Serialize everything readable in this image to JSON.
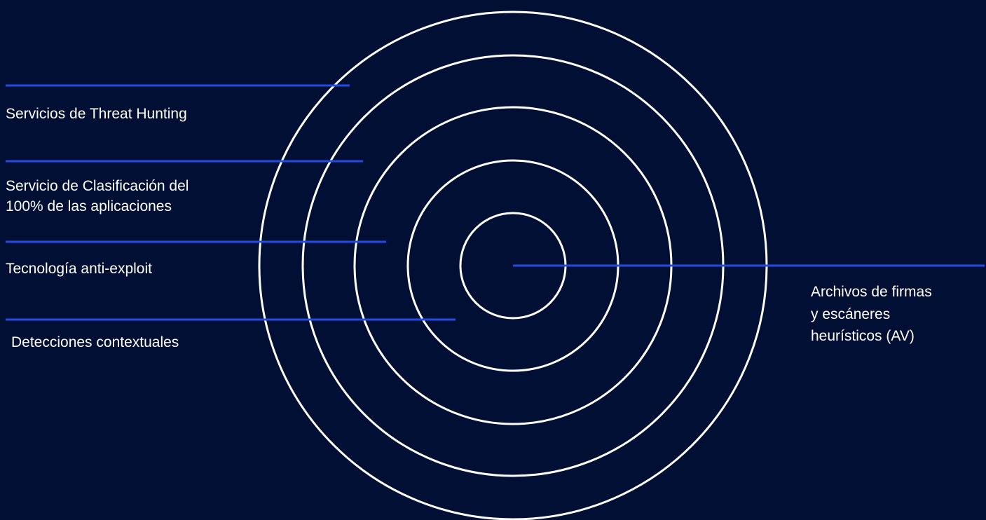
{
  "diagram": {
    "colors": {
      "background": "#000f33",
      "ring": "#ffffff",
      "leader_line": "#1f4de0",
      "text": "#ffffff"
    },
    "layers": [
      {
        "id": "threat-hunting",
        "lines": [
          "Servicios de Threat Hunting"
        ]
      },
      {
        "id": "classification",
        "lines": [
          "Servicio de Clasificación del",
          "100% de las aplicaciones"
        ]
      },
      {
        "id": "anti-exploit",
        "lines": [
          "Tecnología anti-exploit"
        ]
      },
      {
        "id": "contextual",
        "lines": [
          "Detecciones contextuales"
        ]
      },
      {
        "id": "signatures",
        "lines": [
          "Archivos de firmas",
          "y escáneres",
          "heurísticos (AV)"
        ]
      }
    ]
  }
}
